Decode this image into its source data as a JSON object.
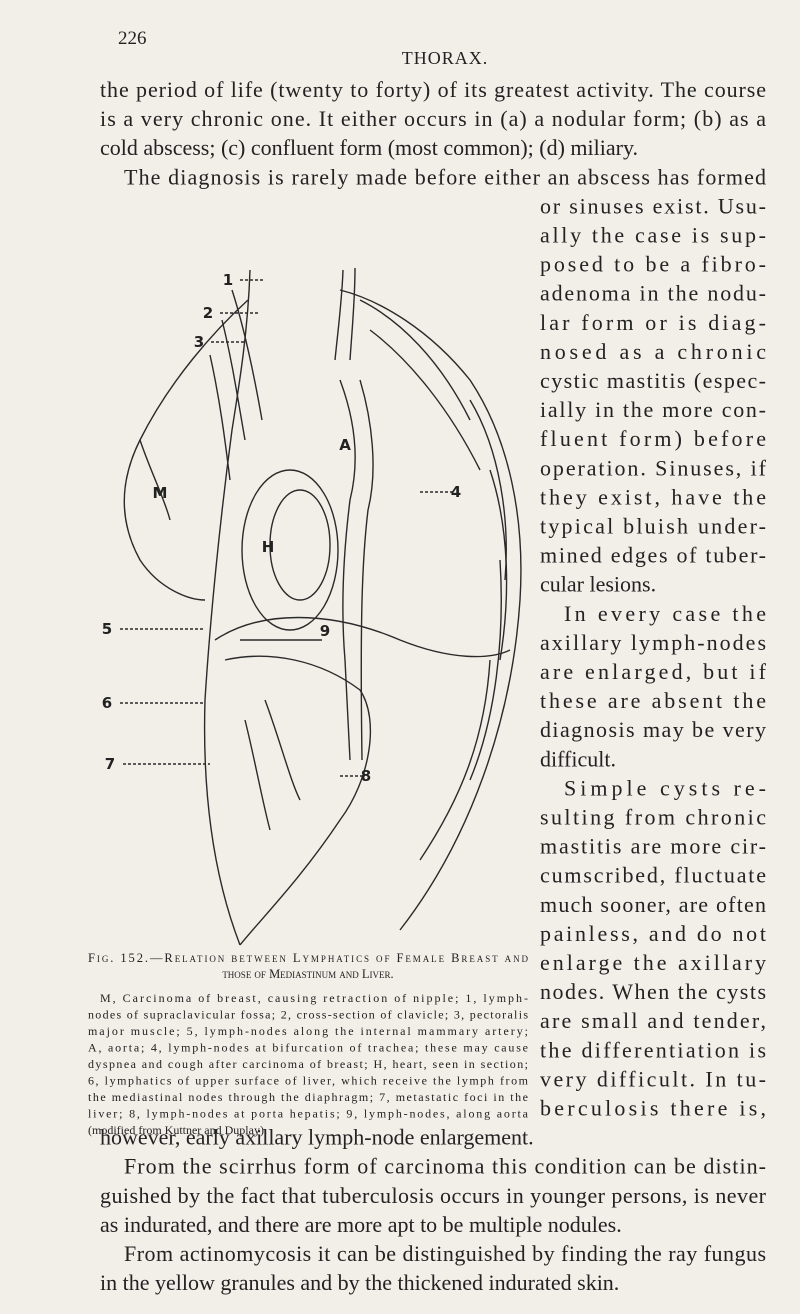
{
  "header": {
    "page_number": "226",
    "running_title": "THORAX."
  },
  "body": {
    "top_lines": [
      "the period of life (twenty to forty) of its greatest activity. The course",
      "is a very chronic one. It either occurs in (a) a nodular form; (b) as a",
      "cold abscess; (c) confluent form (most common); (d) miliary.",
      "The diagnosis is rarely made before either an abscess has formed"
    ],
    "right_column_lines": [
      "or sinuses exist. Usu-",
      "ally the case is sup-",
      "posed to be a fibro-",
      "adenoma in the nodu-",
      "lar form or is diag-",
      "nosed as a chronic",
      "cystic mastitis (espec-",
      "ially in the more con-",
      "fluent form) before",
      "operation. Sinuses, if",
      "they exist, have the",
      "typical bluish under-",
      "mined edges of tuber-",
      "cular lesions.",
      "In every case the",
      "axillary lymph-nodes",
      "are enlarged, but if",
      "these are absent the",
      "diagnosis may be very",
      "difficult.",
      "Simple cysts re-",
      "sulting from chronic",
      "mastitis are more cir-",
      "cumscribed, fluctuate",
      "much sooner, are often",
      "painless, and do not",
      "enlarge the axillary",
      "nodes. When the cysts",
      "are small and tender,",
      "the differentiation is",
      "very difficult. In tu-",
      "berculosis there is,"
    ],
    "bottom_lines": [
      "however, early axillary lymph-node enlargement.",
      "From the scirrhus form of carcinoma this condition can be distin-",
      "guished by the fact that tuberculosis occurs in younger persons, is never",
      "as indurated, and there are more apt to be multiple nodules.",
      "From actinomycosis it can be distinguished by finding the ray fungus",
      "in the yellow granules and by the thickened indurated skin."
    ]
  },
  "figure": {
    "labels": [
      "1",
      "2",
      "3",
      "4",
      "5",
      "6",
      "7",
      "8",
      "9",
      "M",
      "A",
      "H"
    ],
    "caption": {
      "title_lines": [
        "Fig. 152.—Relation between Lymphatics of Female Breast and",
        "those of Mediastinum and Liver."
      ],
      "body_lines": [
        "M, Carcinoma of breast, causing retraction of nipple; 1, lymph-",
        "nodes of supraclavicular fossa; 2, cross-section of clavicle; 3, pectoralis",
        "major muscle; 5, lymph-nodes along the internal mammary artery;",
        "A, aorta; 4, lymph-nodes at bifurcation of trachea; these may cause",
        "dyspnea and cough after carcinoma of breast; H, heart, seen in section;",
        "6, lymphatics of upper surface of liver, which receive the lymph from",
        "the mediastinal nodes through the diaphragm; 7, metastatic foci in the",
        "liver; 8, lymph-nodes at porta hepatis; 9, lymph-nodes, along aorta",
        "(modified from Kuttner and Duplay)."
      ]
    }
  }
}
